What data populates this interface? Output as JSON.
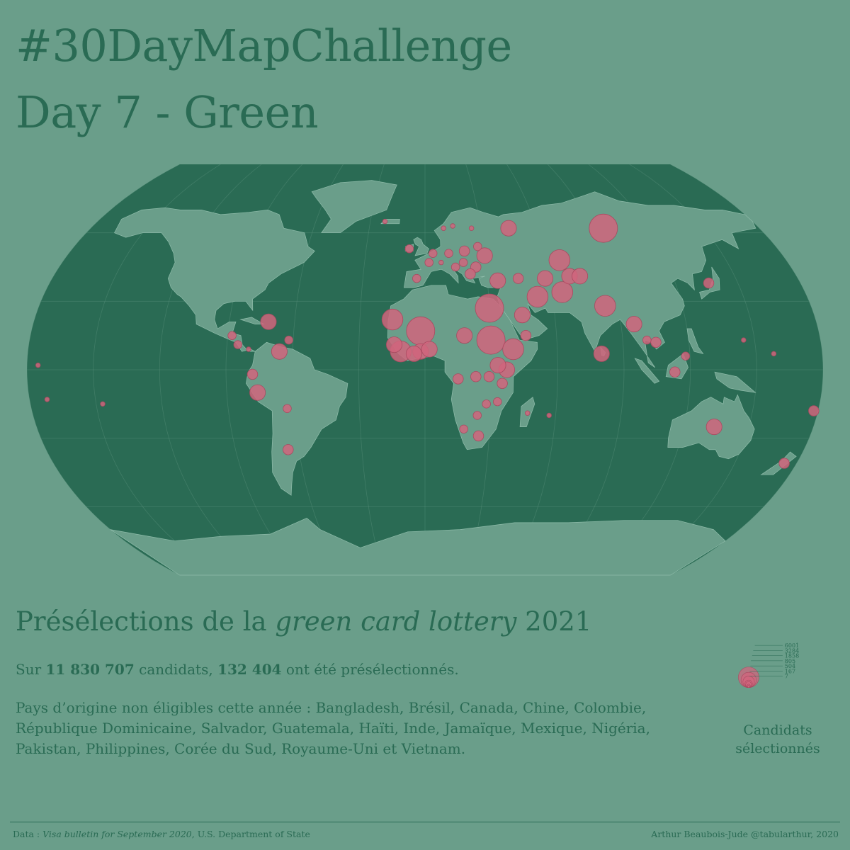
{
  "header": {
    "title_line1": "#30DayMapChallenge",
    "title_line2": "Day 7 - Green"
  },
  "colors": {
    "background": "#6a9e8a",
    "ocean": "#2a6b54",
    "land": "#6a9e8a",
    "bubble": "#d0657d",
    "text": "#2a6b54"
  },
  "subtitle": {
    "part1": "Présélections de la ",
    "italic": "green card lottery",
    "part2": " 2021"
  },
  "stats": {
    "prefix": "Sur ",
    "total_candidates": "11 830 707",
    "middle": " candidats, ",
    "selected": "132 404",
    "suffix": " ont été présélectionnés."
  },
  "noneligible": "Pays d’origine non éligibles cette année : Bangladesh, Brésil, Canada, Chine, Colombie, République Dominicaine, Salvador, Guatemala, Haïti, Inde, Jamaïque, Mexique, Nigéria, Pakistan, Philippines, Corée du Sud, Royaume-Uni et Vietnam.",
  "legend": {
    "values": [
      "6001",
      "3284",
      "1858",
      "805",
      "504",
      "167",
      "7"
    ],
    "title_line1": "Candidats",
    "title_line2": "sélectionnés"
  },
  "footer": {
    "left_prefix": "Data : ",
    "left_italic": "Visa bulletin for September 2020",
    "left_suffix": ", U.S. Department of State",
    "right": "Arthur Beaubois-Jude @tabularthur, 2020"
  },
  "map_data": {
    "projection": "Winkel tripel",
    "bubbles": [
      {
        "lon": 96,
        "lat": 62,
        "value": 6001
      },
      {
        "lon": 45,
        "lat": 62,
        "value": 1858
      },
      {
        "lon": 30,
        "lat": 50,
        "value": 1858
      },
      {
        "lon": 20,
        "lat": 52,
        "value": 805
      },
      {
        "lon": 12,
        "lat": 51,
        "value": 504
      },
      {
        "lon": 2,
        "lat": 47,
        "value": 504
      },
      {
        "lon": -4,
        "lat": 40,
        "value": 504
      },
      {
        "lon": 25,
        "lat": 45,
        "value": 805
      },
      {
        "lon": 22,
        "lat": 42,
        "value": 805
      },
      {
        "lon": 19,
        "lat": 47,
        "value": 504
      },
      {
        "lon": 15,
        "lat": 45,
        "value": 504
      },
      {
        "lon": 35,
        "lat": 39,
        "value": 1858
      },
      {
        "lon": 45,
        "lat": 40,
        "value": 805
      },
      {
        "lon": 53,
        "lat": 32,
        "value": 3284
      },
      {
        "lon": 65,
        "lat": 34,
        "value": 3284
      },
      {
        "lon": 70,
        "lat": 41,
        "value": 1858
      },
      {
        "lon": 67,
        "lat": 48,
        "value": 3284
      },
      {
        "lon": 58,
        "lat": 40,
        "value": 1858
      },
      {
        "lon": 75,
        "lat": 41,
        "value": 1858
      },
      {
        "lon": 84,
        "lat": 28,
        "value": 3284
      },
      {
        "lon": 80,
        "lat": 7,
        "value": 1858
      },
      {
        "lon": 96,
        "lat": 20,
        "value": 1858
      },
      {
        "lon": 101,
        "lat": 13,
        "value": 504
      },
      {
        "lon": 105,
        "lat": 12,
        "value": 805
      },
      {
        "lon": 113,
        "lat": -1,
        "value": 805
      },
      {
        "lon": 118,
        "lat": 6,
        "value": 504
      },
      {
        "lon": 136,
        "lat": 38,
        "value": 805
      },
      {
        "lon": 134,
        "lat": -25,
        "value": 1858
      },
      {
        "lon": 174,
        "lat": -41,
        "value": 805
      },
      {
        "lon": 178,
        "lat": -18,
        "value": 805
      },
      {
        "lon": -15,
        "lat": 22,
        "value": 3284
      },
      {
        "lon": -2,
        "lat": 17,
        "value": 6001
      },
      {
        "lon": 18,
        "lat": 15,
        "value": 1858
      },
      {
        "lon": 30,
        "lat": 27,
        "value": 6001
      },
      {
        "lon": 30,
        "lat": 13,
        "value": 6001
      },
      {
        "lon": 40,
        "lat": 9,
        "value": 3284
      },
      {
        "lon": 46,
        "lat": 15,
        "value": 805
      },
      {
        "lon": 45,
        "lat": 24,
        "value": 1858
      },
      {
        "lon": 37,
        "lat": 0,
        "value": 1858
      },
      {
        "lon": 33,
        "lat": 2,
        "value": 1858
      },
      {
        "lon": 29,
        "lat": -3,
        "value": 805
      },
      {
        "lon": 35,
        "lat": -6,
        "value": 805
      },
      {
        "lon": 23,
        "lat": -3,
        "value": 805
      },
      {
        "lon": 15,
        "lat": -4,
        "value": 805
      },
      {
        "lon": -11,
        "lat": 8,
        "value": 3284
      },
      {
        "lon": -2,
        "lat": 8,
        "value": 1858
      },
      {
        "lon": 2,
        "lat": 9,
        "value": 1858
      },
      {
        "lon": -5,
        "lat": 7,
        "value": 1858
      },
      {
        "lon": -14,
        "lat": 11,
        "value": 1858
      },
      {
        "lon": 24,
        "lat": -20,
        "value": 504
      },
      {
        "lon": 25,
        "lat": -29,
        "value": 805
      },
      {
        "lon": 18,
        "lat": -26,
        "value": 504
      },
      {
        "lon": 28,
        "lat": -15,
        "value": 504
      },
      {
        "lon": 33,
        "lat": -14,
        "value": 504
      },
      {
        "lon": 47,
        "lat": -19,
        "value": 167
      },
      {
        "lon": 57,
        "lat": -20,
        "value": 167
      },
      {
        "lon": -72,
        "lat": 21,
        "value": 1858
      },
      {
        "lon": -66,
        "lat": 8,
        "value": 1858
      },
      {
        "lon": -76,
        "lat": -10,
        "value": 1858
      },
      {
        "lon": -78,
        "lat": -2,
        "value": 805
      },
      {
        "lon": -65,
        "lat": -35,
        "value": 805
      },
      {
        "lon": -63,
        "lat": -17,
        "value": 504
      },
      {
        "lon": -88,
        "lat": 15,
        "value": 504
      },
      {
        "lon": -85,
        "lat": 11,
        "value": 504
      },
      {
        "lon": -62,
        "lat": 13,
        "value": 504
      },
      {
        "lon": -80,
        "lat": 9,
        "value": 167
      },
      {
        "lon": -147,
        "lat": -15,
        "value": 167
      },
      {
        "lon": -172,
        "lat": -13,
        "value": 167
      },
      {
        "lon": -175,
        "lat": 2,
        "value": 167
      },
      {
        "lon": 158,
        "lat": 7,
        "value": 167
      },
      {
        "lon": 145,
        "lat": 13,
        "value": 167
      },
      {
        "lon": -8,
        "lat": 53,
        "value": 504
      },
      {
        "lon": 10,
        "lat": 62,
        "value": 167
      },
      {
        "lon": 25,
        "lat": 62,
        "value": 167
      },
      {
        "lon": 15,
        "lat": 63,
        "value": 167
      },
      {
        "lon": -22,
        "lat": 65,
        "value": 167
      },
      {
        "lon": 8,
        "lat": 47,
        "value": 167
      },
      {
        "lon": 4,
        "lat": 51,
        "value": 504
      },
      {
        "lon": 27,
        "lat": 54,
        "value": 504
      }
    ]
  }
}
